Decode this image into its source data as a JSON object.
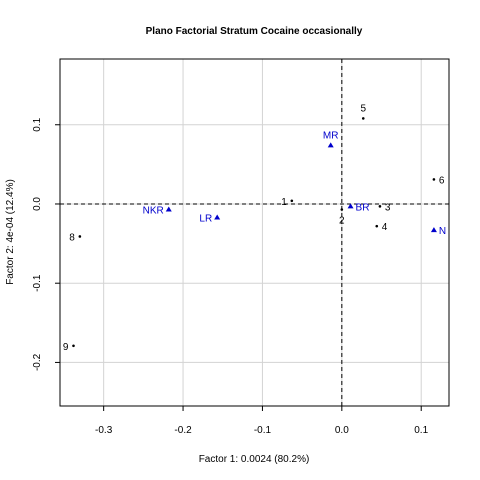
{
  "chart_data": {
    "type": "scatter",
    "title": "Plano Factorial Stratum Cocaine occasionally",
    "xlabel": "Factor 1: 0.0024 (80.2%)",
    "ylabel": "Factor 2: 4e-04 (12.4%)",
    "xlim": [
      -0.355,
      0.135
    ],
    "ylim": [
      -0.255,
      0.183
    ],
    "x_ticks": [
      -0.3,
      -0.2,
      -0.1,
      0.0,
      0.1
    ],
    "x_tick_labels": [
      "-0.3",
      "-0.2",
      "-0.1",
      "0.0",
      "0.1"
    ],
    "y_ticks": [
      -0.2,
      -0.1,
      0.0,
      0.1
    ],
    "y_tick_labels": [
      "-0.2",
      "-0.1",
      "0.0",
      "0.1"
    ],
    "grid": true,
    "reference_lines": {
      "x": 0,
      "y": 0,
      "style": "dashed"
    },
    "series": [
      {
        "marker": "dot",
        "color": "#000000",
        "points": [
          {
            "label": "1",
            "x": -0.063,
            "y": 0.004,
            "label_pos": "left"
          },
          {
            "label": "2",
            "x": 0.0,
            "y": -0.007,
            "label_pos": "below"
          },
          {
            "label": "3",
            "x": 0.048,
            "y": -0.003,
            "label_pos": "right"
          },
          {
            "label": "4",
            "x": 0.044,
            "y": -0.028,
            "label_pos": "right"
          },
          {
            "label": "5",
            "x": 0.027,
            "y": 0.108,
            "label_pos": "above"
          },
          {
            "label": "6",
            "x": 0.116,
            "y": 0.031,
            "label_pos": "right"
          },
          {
            "label": "8",
            "x": -0.33,
            "y": -0.041,
            "label_pos": "left"
          },
          {
            "label": "9",
            "x": -0.338,
            "y": -0.179,
            "label_pos": "left"
          }
        ]
      },
      {
        "marker": "triangle",
        "color": "#0000cc",
        "points": [
          {
            "label": "MR",
            "x": -0.014,
            "y": 0.074,
            "label_pos": "above"
          },
          {
            "label": "NKR",
            "x": -0.218,
            "y": -0.007,
            "label_pos": "left"
          },
          {
            "label": "LR",
            "x": -0.157,
            "y": -0.017,
            "label_pos": "left"
          },
          {
            "label": "BR",
            "x": 0.011,
            "y": -0.003,
            "label_pos": "right"
          },
          {
            "label": "N",
            "x": 0.116,
            "y": -0.033,
            "label_pos": "right"
          }
        ]
      }
    ]
  }
}
